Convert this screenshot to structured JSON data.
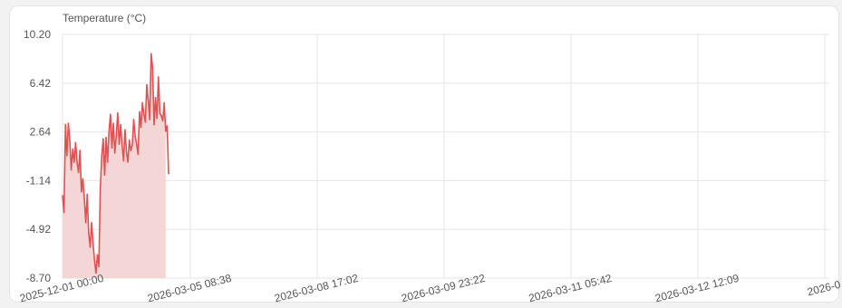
{
  "chart_data": {
    "type": "area",
    "title": "Temperature (°C)",
    "xlabel": "",
    "ylabel": "",
    "ylim": [
      -8.7,
      10.2
    ],
    "y_ticks": [
      "10.20",
      "6.42",
      "2.64",
      "-1.14",
      "-4.92",
      "-8.70"
    ],
    "x_ticks": [
      "2025-12-01 00:00",
      "2026-03-05 08:38",
      "2026-03-08 17:02",
      "2026-03-09 23:22",
      "2026-03-11 05:42",
      "2026-03-12 12:09",
      "2026-0"
    ],
    "grid": true,
    "series": [
      {
        "color": "#e05252",
        "fill": "#f5d6d6",
        "values": [
          -2.3,
          -3.6,
          3.2,
          0.8,
          3.3,
          2.0,
          -0.3,
          1.3,
          0.3,
          1.8,
          0.3,
          -0.5,
          1.2,
          -2.0,
          -1.0,
          -2.5,
          -4.4,
          -2.2,
          -5.2,
          -6.3,
          -4.4,
          -6.0,
          -7.3,
          -8.3,
          -6.9,
          -7.8,
          -1.8,
          0.8,
          2.1,
          -0.7,
          2.2,
          0.3,
          2.7,
          4.0,
          1.4,
          3.3,
          1.0,
          2.4,
          4.1,
          1.7,
          3.2,
          1.6,
          0.4,
          2.8,
          1.1,
          0.3,
          2.0,
          1.2,
          1.6,
          3.6,
          2.3,
          1.7,
          0.9,
          4.2,
          3.0,
          4.9,
          4.0,
          3.4,
          6.3,
          5.1,
          3.6,
          8.7,
          7.6,
          3.2,
          5.3,
          3.7,
          6.9,
          4.1,
          3.9,
          3.5,
          4.9,
          2.7,
          3.1,
          -0.6
        ]
      }
    ]
  }
}
